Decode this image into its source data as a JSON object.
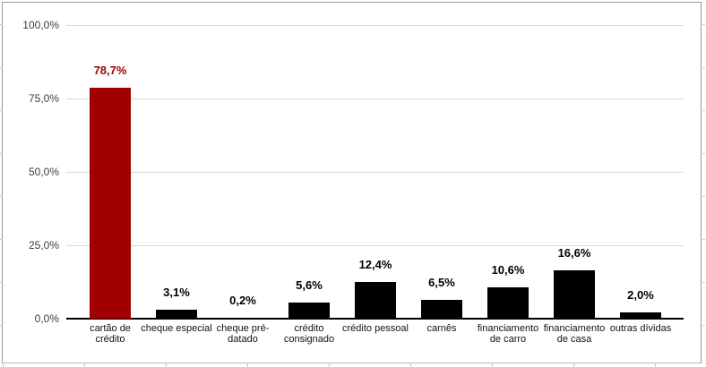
{
  "chart_data": {
    "type": "bar",
    "title": "",
    "xlabel": "",
    "ylabel": "",
    "categories": [
      "cartão de crédito",
      "cheque especial",
      "cheque pré-datado",
      "crédito consignado",
      "crédito pessoal",
      "carnês",
      "financiamento de carro",
      "financiamento de casa",
      "outras dívidas"
    ],
    "values": [
      78.7,
      3.1,
      0.2,
      5.6,
      12.4,
      6.5,
      10.6,
      16.6,
      2.0
    ],
    "value_labels": [
      "78,7%",
      "3,1%",
      "0,2%",
      "5,6%",
      "12,4%",
      "6,5%",
      "10,6%",
      "16,6%",
      "2,0%"
    ],
    "ylim": [
      0,
      100
    ],
    "y_tick_labels": [
      "100,0%",
      "75,0%",
      "50,0%",
      "25,0%",
      "0,0%"
    ],
    "grid": true,
    "legend_position": "none",
    "highlight_index": 0,
    "colors": {
      "highlight_bar": "#A00000",
      "bar": "#000000",
      "highlight_value_label": "#A00000",
      "value_label": "#000000",
      "gridline": "#D9D9D9",
      "axis_line": "#000000"
    }
  }
}
